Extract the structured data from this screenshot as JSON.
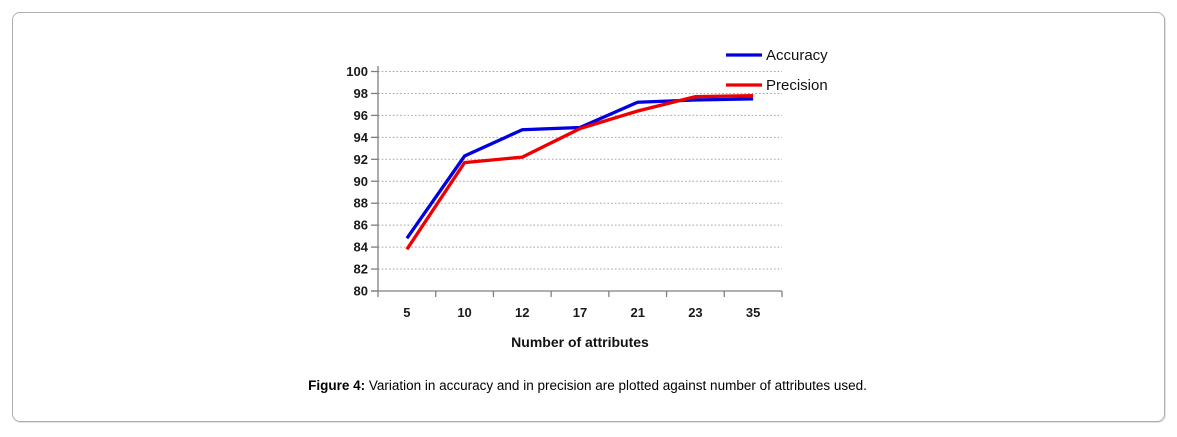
{
  "figure": {
    "caption_label": "Figure 4:",
    "caption_text": " Variation in accuracy and in precision are plotted against number of attributes used."
  },
  "chart_data": {
    "type": "line",
    "title": "",
    "xlabel": "Number of attributes",
    "ylabel": "",
    "categories": [
      "5",
      "10",
      "12",
      "17",
      "21",
      "23",
      "35"
    ],
    "ylim": [
      80,
      100
    ],
    "ytick_step": 2,
    "ytick_labels": [
      "80",
      "82",
      "84",
      "86",
      "88",
      "90",
      "92",
      "94",
      "96",
      "98",
      "100"
    ],
    "grid": "horizontal-dotted",
    "legend_position": "top-right",
    "series": [
      {
        "name": "Accuracy",
        "color": "#0000E0",
        "values": [
          84.8,
          92.3,
          94.7,
          94.9,
          97.2,
          97.4,
          97.5
        ]
      },
      {
        "name": "Precision",
        "color": "#EE0000",
        "values": [
          83.8,
          91.7,
          92.2,
          94.8,
          96.4,
          97.7,
          97.8
        ]
      }
    ],
    "colors": {
      "axis": "#7f7f7f",
      "gridline": "#a3a3a3",
      "tick_text": "#1a1a1a"
    }
  }
}
